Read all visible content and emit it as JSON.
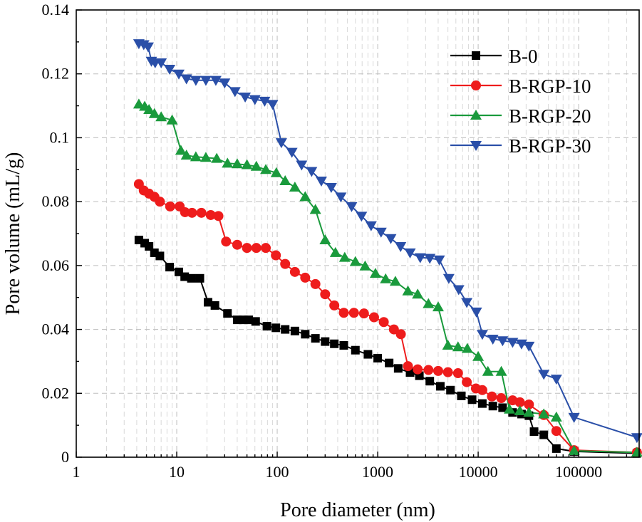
{
  "chart_data": {
    "type": "line",
    "title": "",
    "xlabel": "Pore diameter (nm)",
    "ylabel": "Pore volume (mL/g)",
    "xscale": "log",
    "xlim": [
      1,
      400000
    ],
    "ylim": [
      0,
      0.14
    ],
    "grid": true,
    "legend_position": "top-right",
    "x_ticks": [
      {
        "value": 1,
        "label": "1"
      },
      {
        "value": 10,
        "label": "10"
      },
      {
        "value": 100,
        "label": "100"
      },
      {
        "value": 1000,
        "label": "1000"
      },
      {
        "value": 10000,
        "label": "10000"
      },
      {
        "value": 100000,
        "label": "100000"
      }
    ],
    "y_ticks": [
      {
        "value": 0,
        "label": "0"
      },
      {
        "value": 0.02,
        "label": "0.02"
      },
      {
        "value": 0.04,
        "label": "0.04"
      },
      {
        "value": 0.06,
        "label": "0.06"
      },
      {
        "value": 0.08,
        "label": "0.08"
      },
      {
        "value": 0.1,
        "label": "0.1"
      },
      {
        "value": 0.12,
        "label": "0.12"
      },
      {
        "value": 0.14,
        "label": "0.14"
      }
    ],
    "series": [
      {
        "name": "B-0",
        "color": "#000000",
        "marker": "square",
        "x": [
          4.2,
          4.8,
          5.3,
          6.0,
          6.8,
          8.5,
          10.5,
          12,
          14,
          17,
          20.5,
          24,
          32,
          40,
          46,
          52,
          61,
          79,
          97,
          120,
          150,
          190,
          240,
          300,
          370,
          460,
          600,
          800,
          1000,
          1300,
          1600,
          2100,
          2600,
          3300,
          4200,
          5300,
          6800,
          8700,
          11000,
          14000,
          17500,
          22000,
          27000,
          32000,
          36000,
          45000,
          60000,
          90000,
          380000
        ],
        "y": [
          0.068,
          0.067,
          0.066,
          0.064,
          0.063,
          0.0595,
          0.058,
          0.0565,
          0.056,
          0.056,
          0.0485,
          0.0475,
          0.045,
          0.043,
          0.043,
          0.043,
          0.0425,
          0.041,
          0.0405,
          0.04,
          0.0395,
          0.0385,
          0.0372,
          0.0362,
          0.0355,
          0.035,
          0.0335,
          0.0322,
          0.031,
          0.0295,
          0.0278,
          0.0265,
          0.0255,
          0.0238,
          0.0222,
          0.021,
          0.0192,
          0.018,
          0.0168,
          0.016,
          0.0155,
          0.014,
          0.0135,
          0.013,
          0.008,
          0.007,
          0.0027,
          0.0018,
          0.0012
        ]
      },
      {
        "name": "B-RGP-10",
        "color": "#ee1c1c",
        "marker": "circle",
        "x": [
          4.2,
          4.7,
          5.3,
          6.0,
          6.8,
          8.6,
          10.7,
          12.1,
          14.2,
          17.6,
          21.8,
          26,
          31,
          40,
          50,
          62,
          77,
          97,
          120,
          150,
          190,
          240,
          300,
          370,
          460,
          580,
          730,
          920,
          1150,
          1450,
          1700,
          2000,
          2500,
          3200,
          4000,
          5000,
          6300,
          7700,
          9500,
          11000,
          13700,
          17000,
          22000,
          26000,
          32000,
          45000,
          60000,
          90000,
          380000
        ],
        "y": [
          0.0855,
          0.0835,
          0.0825,
          0.0815,
          0.08,
          0.0785,
          0.0785,
          0.0767,
          0.0765,
          0.0765,
          0.0758,
          0.0755,
          0.0675,
          0.0665,
          0.0655,
          0.0655,
          0.0655,
          0.0632,
          0.0605,
          0.058,
          0.0562,
          0.0542,
          0.051,
          0.0475,
          0.0452,
          0.0452,
          0.045,
          0.0438,
          0.0423,
          0.04,
          0.0385,
          0.0285,
          0.0275,
          0.0273,
          0.027,
          0.0266,
          0.0263,
          0.0235,
          0.0215,
          0.021,
          0.019,
          0.0185,
          0.0178,
          0.0172,
          0.0165,
          0.0132,
          0.0082,
          0.0022,
          0.0015
        ]
      },
      {
        "name": "B-RGP-20",
        "color": "#1a9a3c",
        "marker": "triangle-up",
        "x": [
          4.2,
          4.8,
          5.3,
          6.0,
          7.0,
          9.0,
          11.0,
          12.5,
          15.5,
          19.5,
          25,
          32,
          40,
          50,
          62,
          77,
          98,
          120,
          150,
          190,
          240,
          300,
          380,
          470,
          600,
          750,
          950,
          1200,
          1500,
          2000,
          2500,
          3200,
          4000,
          5000,
          6300,
          7800,
          10000,
          12500,
          17000,
          20500,
          26000,
          32000,
          45000,
          60000,
          90000,
          380000
        ],
        "y": [
          0.1105,
          0.1098,
          0.1088,
          0.1075,
          0.1065,
          0.1055,
          0.096,
          0.0945,
          0.094,
          0.0938,
          0.0935,
          0.092,
          0.0918,
          0.0915,
          0.091,
          0.09,
          0.089,
          0.0865,
          0.0845,
          0.0815,
          0.0775,
          0.068,
          0.064,
          0.0625,
          0.0612,
          0.0598,
          0.0575,
          0.0558,
          0.055,
          0.052,
          0.051,
          0.048,
          0.047,
          0.035,
          0.0345,
          0.034,
          0.0315,
          0.0268,
          0.0268,
          0.015,
          0.0145,
          0.014,
          0.0135,
          0.0125,
          0.002,
          0.0015
        ]
      },
      {
        "name": "B-RGP-30",
        "color": "#2a4fa8",
        "marker": "triangle-down",
        "x": [
          4.2,
          4.7,
          5.2,
          5.6,
          6.1,
          7.0,
          8.5,
          10.5,
          12.5,
          15.5,
          19.5,
          24.5,
          30,
          38,
          48,
          60,
          75,
          90,
          110,
          140,
          175,
          220,
          275,
          345,
          430,
          550,
          690,
          860,
          1080,
          1350,
          1690,
          2100,
          2650,
          3300,
          4100,
          5100,
          6400,
          7700,
          9600,
          11000,
          14000,
          17500,
          22000,
          27000,
          32000,
          45000,
          60000,
          90000,
          380000
        ],
        "y": [
          0.1295,
          0.1292,
          0.1285,
          0.124,
          0.1235,
          0.1235,
          0.1215,
          0.12,
          0.1185,
          0.118,
          0.118,
          0.118,
          0.1172,
          0.1145,
          0.1128,
          0.112,
          0.1115,
          0.1105,
          0.0985,
          0.0955,
          0.0915,
          0.0895,
          0.0865,
          0.0845,
          0.0815,
          0.0785,
          0.0755,
          0.0725,
          0.0705,
          0.0685,
          0.066,
          0.064,
          0.0625,
          0.0623,
          0.0618,
          0.056,
          0.0525,
          0.0485,
          0.0455,
          0.0385,
          0.037,
          0.0365,
          0.036,
          0.0355,
          0.0348,
          0.026,
          0.0245,
          0.0125,
          0.0062
        ]
      }
    ]
  }
}
